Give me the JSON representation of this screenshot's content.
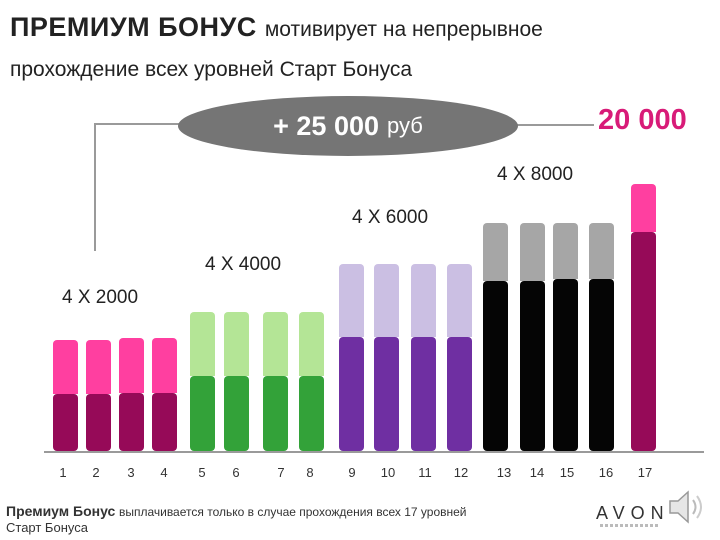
{
  "header": {
    "title_main": "ПРЕМИУМ БОНУС",
    "title_rest": "мотивирует на непрерывное",
    "subtitle": "прохождение всех уровней Старт Бонуса"
  },
  "highlight": {
    "amount": "+ 25 000",
    "unit": "руб",
    "top_amount": "20 000"
  },
  "groups": [
    {
      "label": "4 X 2000",
      "top_color": "#ff3fa0",
      "bottom_color": "#960a58"
    },
    {
      "label": "4 X 4000",
      "top_color": "#b4e596",
      "bottom_color": "#33a239"
    },
    {
      "label": "4 X 6000",
      "top_color": "#cbbfe3",
      "bottom_color": "#6f2fa2"
    },
    {
      "label": "4 X 8000",
      "top_color": "#a6a6a6",
      "bottom_color": "#050505"
    },
    {
      "label": "",
      "top_color": "#ff3fa0",
      "bottom_color": "#960a58"
    }
  ],
  "bars": [
    {
      "level": "1",
      "group": 0
    },
    {
      "level": "2",
      "group": 0
    },
    {
      "level": "3",
      "group": 0
    },
    {
      "level": "4",
      "group": 0
    },
    {
      "level": "5",
      "group": 1
    },
    {
      "level": "6",
      "group": 1
    },
    {
      "level": "7",
      "group": 1
    },
    {
      "level": "8",
      "group": 1
    },
    {
      "level": "9",
      "group": 2
    },
    {
      "level": "10",
      "group": 2
    },
    {
      "level": "11",
      "group": 2
    },
    {
      "level": "12",
      "group": 2
    },
    {
      "level": "13",
      "group": 3
    },
    {
      "level": "14",
      "group": 3
    },
    {
      "level": "15",
      "group": 3
    },
    {
      "level": "16",
      "group": 3
    },
    {
      "level": "17",
      "group": 4
    }
  ],
  "footer": {
    "bold": "Премиум Бонус",
    "rest": "выплачивается только в случае прохождения всех 17  уровней",
    "line2": "Старт Бонуса",
    "brand": "AVON"
  },
  "icons": {
    "speaker": "speaker-icon"
  }
}
